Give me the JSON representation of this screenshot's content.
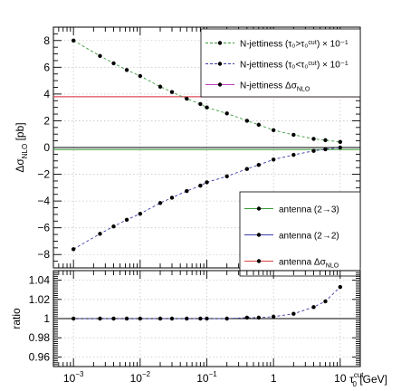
{
  "chart_data": [
    {
      "type": "line",
      "panel": "main",
      "x_scale": "log",
      "xlim": [
        0.0005,
        20
      ],
      "ylim": [
        -9,
        9
      ],
      "grid": true,
      "ylabel_main": "Δσ",
      "ylabel_sub": "NLO",
      "ylabel_unit": " [pb]",
      "yticks": [
        -8,
        -6,
        -4,
        -2,
        0,
        2,
        4,
        6,
        8
      ],
      "legend_top_position": "top-right",
      "legend_bottom_position": "bottom-right",
      "x": [
        0.001,
        0.0025,
        0.004,
        0.0063,
        0.01,
        0.02,
        0.03,
        0.05,
        0.08,
        0.1,
        0.2,
        0.4,
        0.6,
        1.0,
        2.0,
        4.0,
        6.0,
        10.0
      ],
      "series": [
        {
          "name": "N-jettiness (τ₀>τ₀ᶜᵘᵗ) × 10⁻¹",
          "legend": "top",
          "color": "#3a9a3a",
          "style": "dashed-markers",
          "values": [
            8.0,
            6.85,
            6.3,
            5.8,
            5.35,
            4.55,
            4.15,
            3.65,
            3.25,
            3.0,
            2.55,
            2.0,
            1.7,
            1.3,
            0.95,
            0.65,
            0.55,
            0.42
          ]
        },
        {
          "name": "N-jettiness (τ₀<τ₀ᶜᵘᵗ) × 10⁻¹",
          "legend": "top",
          "color": "#3a3aa8",
          "style": "dashed-markers",
          "values": [
            -7.6,
            -6.45,
            -5.9,
            -5.4,
            -4.95,
            -4.15,
            -3.75,
            -3.25,
            -2.85,
            -2.6,
            -2.15,
            -1.6,
            -1.3,
            -0.9,
            -0.55,
            -0.25,
            -0.13,
            0.0
          ]
        },
        {
          "name": "N-jettiness Δσ",
          "name_sub": "NLO",
          "legend": "top",
          "color": "#c040c0",
          "style": "line-marker",
          "constant": 3.8
        },
        {
          "name": "antenna (2→3)",
          "legend": "bottom",
          "color": "#3a9a3a",
          "style": "line-marker",
          "constant": -0.15
        },
        {
          "name": "antenna (2→2)",
          "legend": "bottom",
          "color": "#3a3aa8",
          "style": "line-marker",
          "constant": 0.0
        },
        {
          "name": "antenna Δσ",
          "name_sub": "NLO",
          "legend": "bottom",
          "color": "#e04040",
          "style": "line-marker",
          "constant": 3.8
        }
      ]
    },
    {
      "type": "line",
      "panel": "ratio",
      "x_scale": "log",
      "xlim": [
        0.0005,
        20
      ],
      "ylim": [
        0.95,
        1.05
      ],
      "grid": true,
      "ylabel": "ratio",
      "yticks": [
        0.96,
        0.98,
        1,
        1.02,
        1.04
      ],
      "ytick_labels": [
        "0.96",
        "0.98",
        "1",
        "1.02",
        "1.04"
      ],
      "xticks": [
        0.001,
        0.01,
        0.1,
        1,
        10
      ],
      "xtick_labels": [
        {
          "base": "10",
          "exp": "−3"
        },
        {
          "base": "10",
          "exp": "−2"
        },
        {
          "base": "10",
          "exp": "−1"
        },
        {
          "base": "1",
          "exp": ""
        },
        {
          "base": "10",
          "exp": ""
        }
      ],
      "xlabel": "τ",
      "xlabel_sup": "cut",
      "xlabel_sub": "0",
      "xlabel_unit": " [GeV]",
      "reference_line": 1,
      "series": [
        {
          "name": "ratio",
          "color": "#3a3aa8",
          "style": "dashed-markers",
          "x": [
            0.001,
            0.0025,
            0.004,
            0.0063,
            0.01,
            0.02,
            0.03,
            0.05,
            0.08,
            0.1,
            0.2,
            0.4,
            0.6,
            1.0,
            2.0,
            4.0,
            6.0,
            10.0
          ],
          "values": [
            1.0,
            1.0,
            1.0,
            1.0,
            1.0,
            1.0,
            1.0,
            1.0,
            1.0,
            1.0,
            1.0,
            1.001,
            1.001,
            1.002,
            1.005,
            1.012,
            1.018,
            1.033
          ]
        }
      ]
    }
  ]
}
